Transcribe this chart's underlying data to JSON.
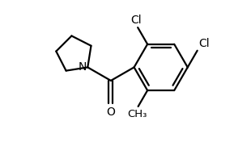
{
  "background_color": "#ffffff",
  "line_color": "#000000",
  "line_width": 1.6,
  "font_size_labels": 10,
  "figsize": [
    3.1,
    1.76
  ],
  "dpi": 100,
  "xlim": [
    -0.5,
    5.0
  ],
  "ylim": [
    -1.8,
    2.0
  ]
}
